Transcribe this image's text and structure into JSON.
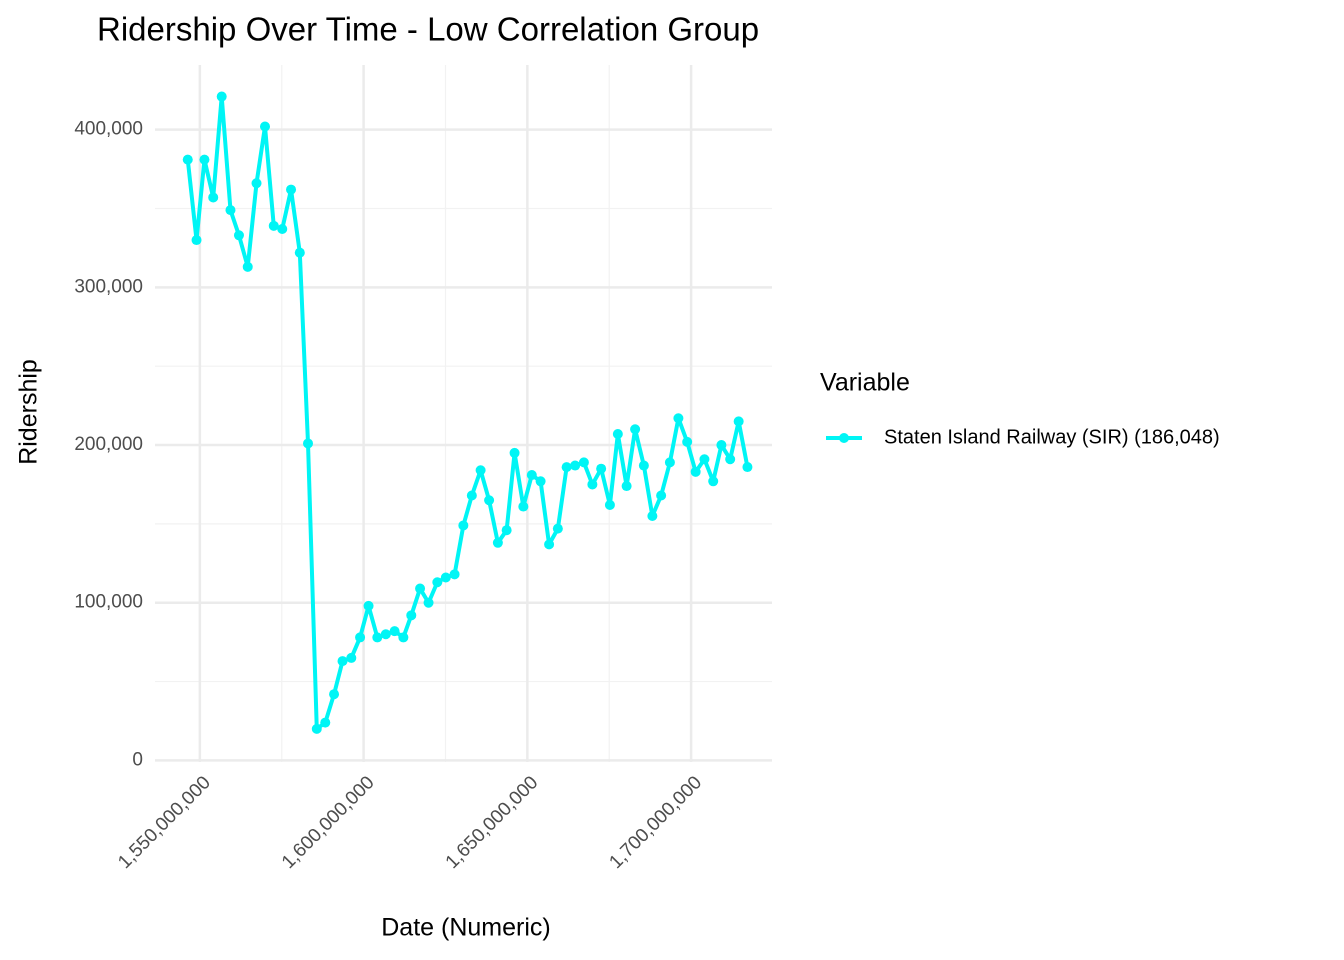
{
  "chart_data": {
    "type": "line",
    "title": "Ridership Over Time - Low Correlation Group",
    "x_label": "Date (Numeric)",
    "y_label": "Ridership",
    "legend_title": "Variable",
    "legend_position": "right",
    "grid": true,
    "x": [
      1546300800,
      1548979200,
      1551398400,
      1554076800,
      1556668800,
      1559347200,
      1561939200,
      1564617600,
      1567296000,
      1569888000,
      1572566400,
      1575158400,
      1577836800,
      1580515200,
      1583020800,
      1585699200,
      1588291200,
      1590969600,
      1593561600,
      1596240000,
      1598918400,
      1601510400,
      1604188800,
      1606780800,
      1609459200,
      1612137600,
      1614556800,
      1617235200,
      1619827200,
      1622505600,
      1625097600,
      1627776000,
      1630454400,
      1633046400,
      1635724800,
      1638316800,
      1640995200,
      1643673600,
      1646092800,
      1648771200,
      1651363200,
      1654041600,
      1656633600,
      1659312000,
      1661990400,
      1664582400,
      1667260800,
      1669852800,
      1672531200,
      1675209600,
      1677628800,
      1680307200,
      1682899200,
      1685577600,
      1688169600,
      1690848000,
      1693526400,
      1696118400,
      1698796800,
      1701388800,
      1704067200,
      1706745600,
      1709251200,
      1711929600,
      1714521600,
      1717200000
    ],
    "series": [
      {
        "name": "Staten Island Railway (SIR) (186,048)",
        "color": "#00f5f5",
        "values": [
          381000,
          330000,
          381000,
          357000,
          421000,
          349000,
          333000,
          313000,
          366000,
          402000,
          339000,
          337000,
          362000,
          322000,
          201000,
          20000,
          24000,
          42000,
          63000,
          65000,
          78000,
          98000,
          78000,
          80000,
          82000,
          78000,
          92000,
          109000,
          100000,
          113000,
          116000,
          118000,
          149000,
          168000,
          184000,
          165000,
          138000,
          146000,
          195000,
          161000,
          181000,
          177000,
          137000,
          147000,
          186000,
          187000,
          189000,
          175000,
          185000,
          162000,
          207000,
          174000,
          210000,
          187000,
          155000,
          168000,
          189000,
          217000,
          202000,
          183000,
          191000,
          177000,
          200000,
          191000,
          215000,
          186048
        ]
      }
    ],
    "xlim": [
      1536300000,
      1724700000
    ],
    "xticks": [
      {
        "value": 1550000000,
        "label": "1,550,000,000"
      },
      {
        "value": 1600000000,
        "label": "1,600,000,000"
      },
      {
        "value": 1650000000,
        "label": "1,650,000,000"
      },
      {
        "value": 1700000000,
        "label": "1,700,000,000"
      }
    ],
    "x_minor_ticks": [
      1575000000,
      1625000000,
      1675000000
    ],
    "ylim": [
      -1000,
      441000
    ],
    "yticks": [
      0,
      {
        "value": 100000,
        "label": "100,000"
      },
      {
        "value": 200000,
        "label": "200,000"
      },
      {
        "value": 300000,
        "label": "300,000"
      },
      {
        "value": 400000,
        "label": "400,000"
      }
    ],
    "y_minor_ticks": [
      50000,
      150000,
      250000,
      350000
    ]
  }
}
